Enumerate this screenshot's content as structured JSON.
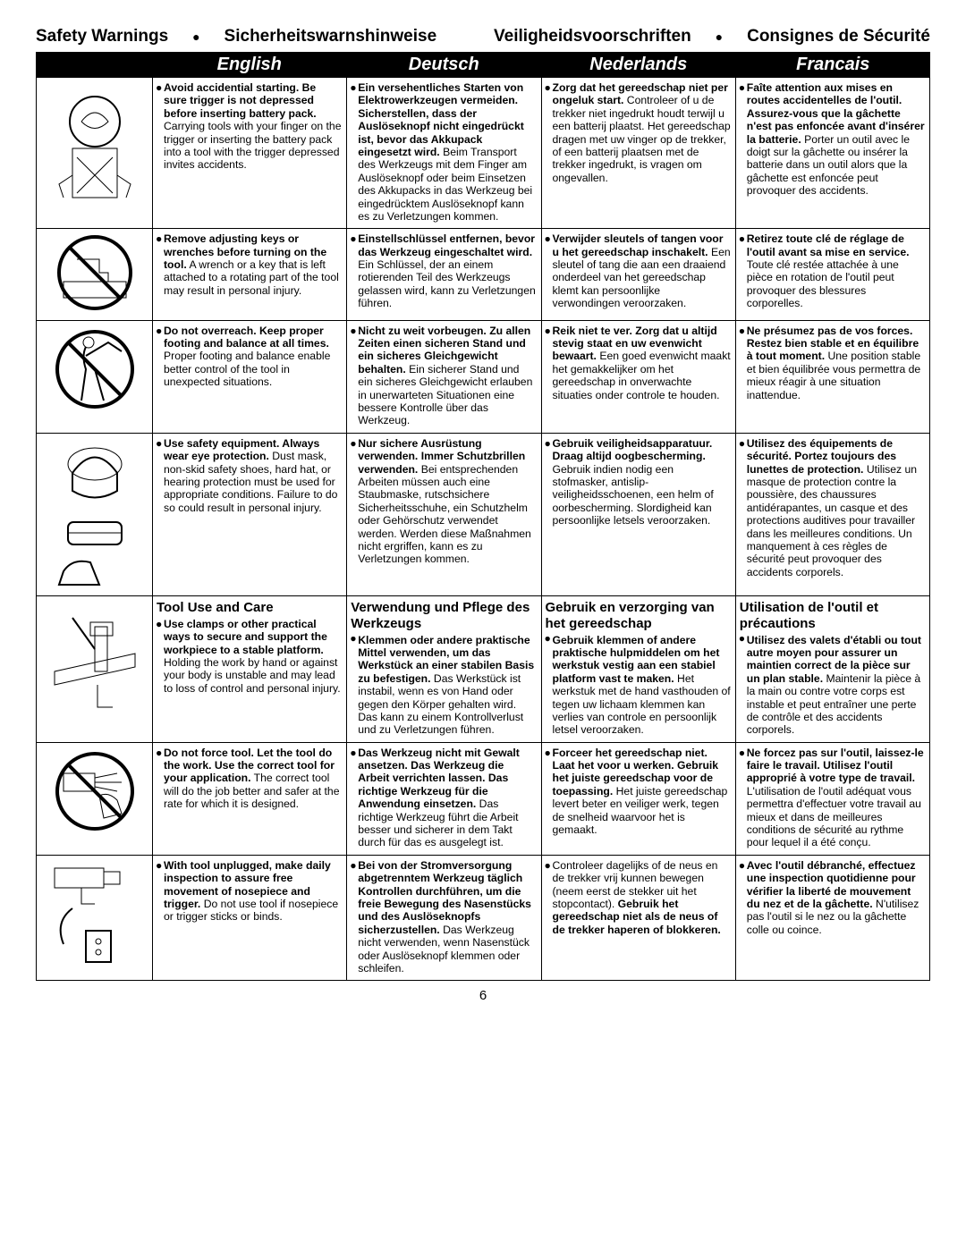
{
  "title": {
    "t1": "Safety Warnings",
    "t2": "Sicherheitswarnshinweise",
    "t3": "Veiligheidsvoorschriften",
    "t4": "Consignes de Sécurité"
  },
  "languages": [
    "English",
    "Deutsch",
    "Nederlands",
    "Francais"
  ],
  "pageNumber": "6",
  "rows": [
    {
      "en_b": "Avoid accidential starting. Be sure trigger is not depressed before inserting battery pack.",
      "en_r": " Carrying tools with your finger on the trigger or inserting the battery pack into a tool with the trigger depressed invites accidents.",
      "de_b": "Ein versehentliches Starten von Elektrowerkzeugen vermeiden. Sicherstellen, dass der Auslöseknopf nicht eingedrückt ist, bevor das Akkupack eingesetzt wird.",
      "de_r": " Beim Transport des Werkzeugs mit dem Finger am Auslöseknopf oder beim Einsetzen des Akkupacks in das Werkzeug bei eingedrücktem Auslöseknopf kann es zu Verletzungen kommen.",
      "nl_b": "Zorg dat het gereedschap niet per ongeluk start.",
      "nl_r": " Controleer of u de trekker niet ingedrukt houdt terwijl u een batterij plaatst. Het gereedschap dragen met uw vinger op de trekker, of een batterij plaatsen met de trekker ingedrukt, is vragen om ongevallen.",
      "fr_b": "Faîte attention aux mises en routes accidentelles de l'outil. Assurez-vous que la gâchette n'est pas enfoncée avant d'insérer la batterie.",
      "fr_r": " Porter un outil avec le doigt sur la gâchette ou insérer la batterie dans un outil alors que la gâchette est enfoncée peut provoquer des accidents."
    },
    {
      "en_b": "Remove adjusting keys or wrenches before turning on the tool.",
      "en_r": " A wrench or a key that is left attached to a rotating part of the tool may result in personal injury.",
      "de_b": "Einstellschlüssel entfernen, bevor das Werkzeug eingeschaltet wird.",
      "de_r": " Ein Schlüssel, der an einem rotierenden Teil des Werkzeugs gelassen wird, kann zu Verletzungen führen.",
      "nl_b": "Verwijder sleutels of tangen voor u het gereedschap inschakelt.",
      "nl_r": " Een sleutel of tang die aan een draaiend onderdeel van het gereedschap klemt kan persoonlijke verwondingen veroorzaken.",
      "fr_b": "Retirez toute clé de réglage de l'outil avant sa mise en service.",
      "fr_r": " Toute clé restée attachée à une pièce en rotation de l'outil peut provoquer des blessures corporelles."
    },
    {
      "en_b": "Do not overreach. Keep proper footing and balance at all times.",
      "en_r": " Proper footing and balance enable better control of the tool in unexpected situations.",
      "de_b": "Nicht zu weit vorbeugen. Zu allen Zeiten einen sicheren Stand und ein sicheres Gleichgewicht behalten.",
      "de_r": " Ein sicherer Stand und ein sicheres Gleichgewicht erlauben in unerwarteten Situationen eine bessere Kontrolle über das Werkzeug.",
      "nl_b": "Reik niet te ver. Zorg dat u altijd stevig staat en uw evenwicht bewaart.",
      "nl_r": " Een goed evenwicht maakt het gemakkelijker om het gereedschap in onverwachte situaties onder controle te houden.",
      "fr_b": "Ne présumez pas de vos forces. Restez bien stable et en équilibre à tout moment.",
      "fr_r": " Une position stable et bien équilibrée vous permettra de mieux réagir à une situation inattendue."
    },
    {
      "en_b": "Use safety equipment. Always wear eye protection.",
      "en_r": " Dust mask, non-skid safety shoes, hard hat, or hearing protection must be used for appropriate conditions. Failure to do so could result in personal injury.",
      "de_b": "Nur sichere Ausrüstung verwenden. Immer Schutzbrillen verwenden.",
      "de_r": " Bei entsprechenden Arbeiten müssen auch eine Staubmaske, rutschsichere Sicherheitsschuhe, ein Schutzhelm oder Gehörschutz verwendet werden. Werden diese Maßnahmen nicht ergriffen, kann es zu Verletzungen kommen.",
      "nl_b": "Gebruik veiligheidsapparatuur. Draag altijd oogbescherming.",
      "nl_r": " Gebruik indien nodig een stofmasker, antislip-veiligheidsschoenen, een helm of oorbescherming. Slordigheid kan persoonlijke letsels veroorzaken.",
      "fr_b": "Utilisez des équipements de sécurité. Portez toujours des lunettes de protection.",
      "fr_r": " Utilisez un masque de protection contre la poussière, des chaussures antidérapantes, un casque et des protections auditives pour travailler dans les meilleures conditions. Un manquement à ces règles de sécurité peut provoquer des accidents corporels."
    },
    {
      "section": true,
      "en_h": "Tool Use and Care",
      "de_h": "Verwendung und Pflege des Werkzeugs",
      "nl_h": "Gebruik en verzorging van het gereedschap",
      "fr_h": "Utilisation de l'outil et précautions",
      "en_b": "Use clamps or other practical ways to secure and support the workpiece to a stable platform.",
      "en_r": " Holding the work by hand or against your body is unstable and may lead to loss of control and personal injury.",
      "de_b": "Klemmen oder andere praktische Mittel verwenden, um das Werkstück an einer stabilen Basis zu befestigen.",
      "de_r": " Das Werkstück ist instabil, wenn es von Hand oder gegen den Körper gehalten wird. Das kann zu einem Kontrollverlust und zu Verletzungen führen.",
      "nl_b": "Gebruik klemmen of andere praktische hulpmiddelen om het werkstuk vestig aan een stabiel platform vast te maken.",
      "nl_r": " Het werkstuk met de hand vasthouden of tegen uw lichaam klemmen kan verlies van controle en persoonlijk letsel veroorzaken.",
      "fr_b": "Utilisez des valets d'établi ou tout autre moyen pour assurer un maintien correct de la pièce sur un plan stable.",
      "fr_r": " Maintenir la pièce à la main ou contre votre corps est instable et peut entraîner une perte de contrôle et des accidents corporels."
    },
    {
      "en_b": "Do not force tool. Let the tool do the work. Use the correct tool for your application.",
      "en_r": " The correct tool will do the job better and safer at the rate for which it is designed.",
      "de_b": "Das Werkzeug nicht mit Gewalt ansetzen. Das Werkzeug die Arbeit verrichten lassen. Das richtige Werkzeug für die Anwendung einsetzen.",
      "de_r": " Das richtige Werkzeug führt die Arbeit besser und sicherer in dem Takt durch für das es ausgelegt ist.",
      "nl_b": "Forceer het gereedschap niet. Laat het voor u werken. Gebruik het juiste gereedschap voor de toepassing.",
      "nl_r": " Het juiste gereedschap levert beter en veiliger werk, tegen de snelheid waarvoor het is gemaakt.",
      "fr_b": "Ne forcez pas sur l'outil, laissez-le faire le travail. Utilisez l'outil approprié à votre type de travail.",
      "fr_r": " L'utilisation de l'outil adéquat vous permettra d'effectuer votre travail au mieux et dans de meilleures conditions de sécurité au rythme pour lequel il a été conçu."
    },
    {
      "en_b": "With tool unplugged, make daily inspection to assure free movement of nosepiece and trigger.",
      "en_r": " Do not use tool if nosepiece or trigger sticks or binds.",
      "de_b": "Bei von der Stromversorgung abgetrenntem Werkzeug täglich Kontrollen durchführen, um die freie Bewegung des Nasenstücks und des Auslöseknopfs sicherzustellen.",
      "de_r": " Das Werkzeug nicht verwenden, wenn Nasenstück oder Auslöseknopf klemmen oder schleifen.",
      "nl_b1": "",
      "nl_r1": "Controleer dagelijks of de neus en de trekker vrij kunnen bewegen (neem eerst de stekker uit het stopcontact). ",
      "nl_b": "Gebruik het gereedschap niet als de neus of de trekker haperen of blokkeren.",
      "nl_r": "",
      "fr_b": "Avec l'outil débranché, effectuez une inspection quotidienne pour vérifier la liberté de mouvement du nez et de la gâchette.",
      "fr_r": " N'utilisez pas l'outil si le nez ou la gâchette colle ou coince."
    }
  ]
}
